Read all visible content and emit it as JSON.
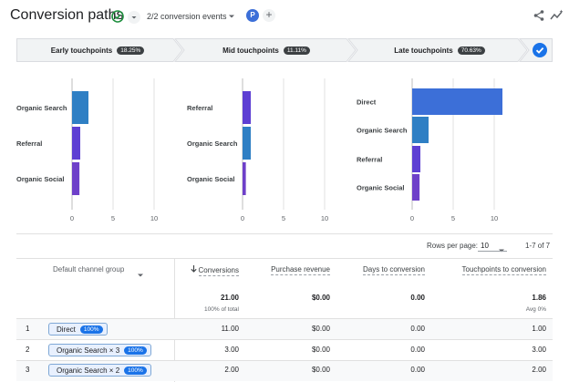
{
  "header": {
    "title": "Conversion paths",
    "events_label": "2/2 conversion events",
    "avatar_letter": "P",
    "add_symbol": "+",
    "status_icon": "check-circle-icon",
    "share_icon": "share-icon",
    "insights_icon": "insights-icon"
  },
  "touchpoints": [
    {
      "label": "Early touchpoints",
      "pct": "18.25%"
    },
    {
      "label": "Mid touchpoints",
      "pct": "11.11%"
    },
    {
      "label": "Late touchpoints",
      "pct": "70.63%"
    }
  ],
  "colors": {
    "accent": "#1a73e8",
    "teal_bar": "#2f7fc4",
    "purple_bar": "#5d3fd3",
    "blue_bar": "#3c6fd8",
    "violet_bar": "#6e40c9"
  },
  "chart_data": [
    {
      "type": "bar",
      "orientation": "horizontal",
      "categories": [
        "Organic Search",
        "Referral",
        "Organic Social"
      ],
      "values": [
        2,
        1,
        0.9
      ],
      "colors": [
        "#2f7fc4",
        "#5d3fd3",
        "#6e40c9"
      ],
      "xlim": [
        0,
        10
      ],
      "xticks": [
        0,
        5,
        10
      ],
      "grid": true
    },
    {
      "type": "bar",
      "orientation": "horizontal",
      "categories": [
        "Referral",
        "Organic Search",
        "Organic Social"
      ],
      "values": [
        1,
        1,
        0.4
      ],
      "colors": [
        "#5d3fd3",
        "#2f7fc4",
        "#6e40c9"
      ],
      "xlim": [
        0,
        10
      ],
      "xticks": [
        0,
        5,
        10
      ],
      "grid": true
    },
    {
      "type": "bar",
      "orientation": "horizontal",
      "categories": [
        "Direct",
        "Organic Search",
        "Referral",
        "Organic Social"
      ],
      "values": [
        11,
        2,
        1,
        0.9
      ],
      "colors": [
        "#3c6fd8",
        "#2f7fc4",
        "#5d3fd3",
        "#6e40c9"
      ],
      "xlim": [
        0,
        10
      ],
      "xticks": [
        0,
        5,
        10
      ],
      "grid": true
    }
  ],
  "pagination": {
    "rows_label": "Rows per page:",
    "rows_value": "10",
    "range": "1-7 of 7"
  },
  "table": {
    "dimension_header": "Default channel group",
    "columns": [
      "Conversions",
      "Purchase revenue",
      "Days to conversion",
      "Touchpoints to conversion"
    ],
    "totals": [
      "21.00",
      "$0.00",
      "0.00",
      "1.86"
    ],
    "totals_sub": [
      "100% of total",
      "",
      "",
      "Avg 0%"
    ],
    "rows": [
      {
        "index": "1",
        "path": "Direct",
        "badge": "100%",
        "values": [
          "11.00",
          "$0.00",
          "0.00",
          "1.00"
        ]
      },
      {
        "index": "2",
        "path": "Organic Search × 3",
        "badge": "100%",
        "values": [
          "3.00",
          "$0.00",
          "0.00",
          "3.00"
        ]
      },
      {
        "index": "3",
        "path": "Organic Search × 2",
        "badge": "100%",
        "values": [
          "2.00",
          "$0.00",
          "0.00",
          "2.00"
        ]
      }
    ]
  }
}
